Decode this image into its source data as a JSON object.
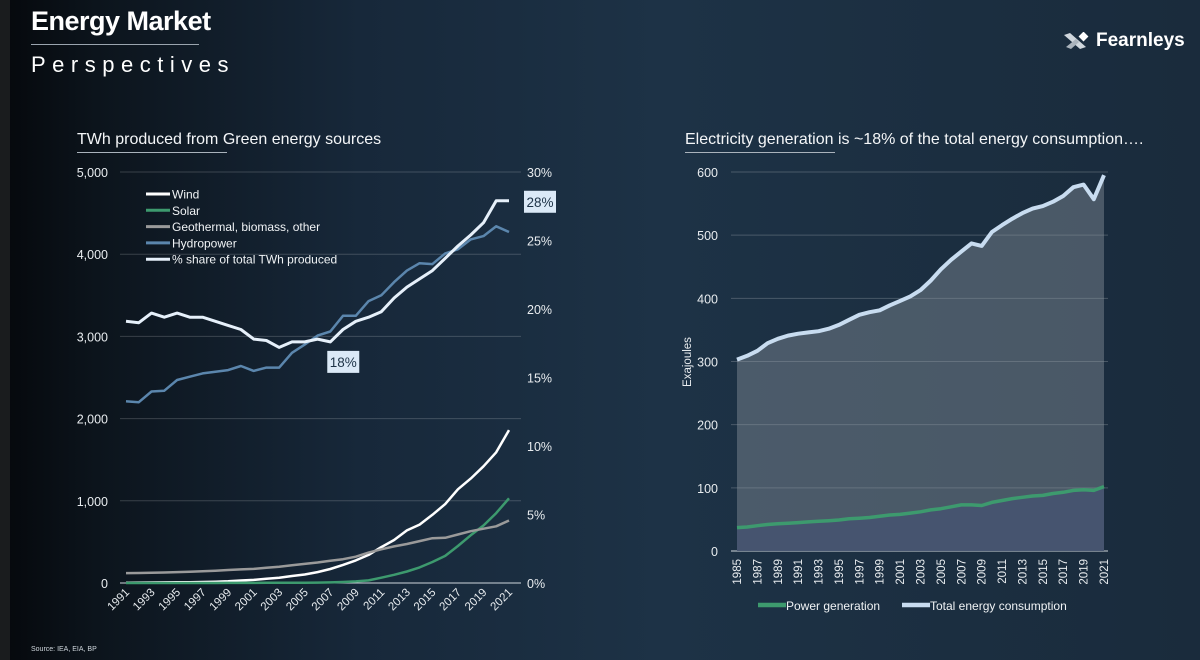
{
  "header": {
    "title": "Energy Market",
    "subtitle": "Perspectives",
    "logo_text": "Fearnleys"
  },
  "source": "Source: IEA, EIA, BP",
  "colors": {
    "wind": "#ffffff",
    "solar": "#3d9a6e",
    "geo": "#9a9a9a",
    "hydro": "#5b86ad",
    "share": "#e6f0fa",
    "total": "#c8dcf0",
    "power": "#3d9a6e"
  },
  "chart_data": [
    {
      "type": "line",
      "title": "TWh produced from Green energy sources",
      "x": [
        1991,
        1992,
        1993,
        1994,
        1995,
        1996,
        1997,
        1998,
        1999,
        2000,
        2001,
        2002,
        2003,
        2004,
        2005,
        2006,
        2007,
        2008,
        2009,
        2010,
        2011,
        2012,
        2013,
        2014,
        2015,
        2016,
        2017,
        2018,
        2019,
        2020,
        2021
      ],
      "x_tick_labels": [
        "1991",
        "1993",
        "1995",
        "1997",
        "1999",
        "2001",
        "2003",
        "2005",
        "2007",
        "2009",
        "2011",
        "2013",
        "2015",
        "2017",
        "2019",
        "2021"
      ],
      "ylim": [
        0,
        5000
      ],
      "y_tick_labels": [
        "0",
        "1,000",
        "2,000",
        "3,000",
        "4,000",
        "5,000"
      ],
      "y2lim": [
        0,
        30
      ],
      "y2_tick_labels": [
        "0%",
        "5%",
        "10%",
        "15%",
        "20%",
        "25%",
        "30%"
      ],
      "grid": true,
      "legend_position": "top-left",
      "series": [
        {
          "name": "Wind",
          "key": "wind",
          "axis": "left",
          "values": [
            4,
            5,
            6,
            7,
            8,
            10,
            12,
            16,
            21,
            31,
            38,
            52,
            63,
            85,
            104,
            133,
            170,
            220,
            275,
            342,
            437,
            523,
            640,
            710,
            830,
            960,
            1140,
            1270,
            1420,
            1590,
            1860
          ]
        },
        {
          "name": "Solar",
          "key": "solar",
          "axis": "left",
          "values": [
            0,
            0,
            0,
            0,
            0,
            0,
            0,
            0,
            1,
            1,
            1,
            2,
            2,
            3,
            4,
            5,
            7,
            12,
            20,
            32,
            65,
            100,
            140,
            190,
            255,
            330,
            450,
            580,
            700,
            850,
            1030
          ]
        },
        {
          "name": "Geothermal, biomass, other",
          "key": "geo",
          "axis": "left",
          "values": [
            120,
            122,
            125,
            128,
            132,
            137,
            143,
            150,
            158,
            166,
            172,
            185,
            198,
            215,
            232,
            250,
            270,
            290,
            320,
            370,
            410,
            445,
            475,
            510,
            545,
            550,
            590,
            630,
            660,
            690,
            760
          ]
        },
        {
          "name": "Hydropower",
          "key": "hydro",
          "axis": "left",
          "values": [
            2210,
            2200,
            2330,
            2340,
            2470,
            2510,
            2550,
            2570,
            2590,
            2640,
            2580,
            2620,
            2620,
            2800,
            2900,
            3010,
            3060,
            3250,
            3250,
            3430,
            3500,
            3660,
            3800,
            3890,
            3880,
            4010,
            4060,
            4180,
            4220,
            4340,
            4270
          ]
        },
        {
          "name": "% share of total TWh produced",
          "key": "share",
          "axis": "right",
          "values": [
            19.1,
            19.0,
            19.7,
            19.4,
            19.7,
            19.4,
            19.4,
            19.1,
            18.8,
            18.5,
            17.8,
            17.7,
            17.2,
            17.6,
            17.6,
            17.8,
            17.6,
            18.5,
            19.1,
            19.4,
            19.8,
            20.8,
            21.6,
            22.2,
            22.8,
            23.7,
            24.6,
            25.4,
            26.3,
            27.9,
            27.9
          ]
        }
      ],
      "annotations": [
        {
          "label": "18%",
          "x": 2007,
          "value": 17.6
        },
        {
          "label": "28%",
          "x": 2021,
          "value": 27.9
        }
      ]
    },
    {
      "type": "area",
      "title": "Electricity generation is ~18% of the total energy consumption….",
      "ylabel": "Exajoules",
      "x": [
        1985,
        1986,
        1987,
        1988,
        1989,
        1990,
        1991,
        1992,
        1993,
        1994,
        1995,
        1996,
        1997,
        1998,
        1999,
        2000,
        2001,
        2002,
        2003,
        2004,
        2005,
        2006,
        2007,
        2008,
        2009,
        2010,
        2011,
        2012,
        2013,
        2014,
        2015,
        2016,
        2017,
        2018,
        2019,
        2020,
        2021
      ],
      "x_tick_labels": [
        "1985",
        "1987",
        "1989",
        "1991",
        "1993",
        "1995",
        "1997",
        "1999",
        "2001",
        "2003",
        "2005",
        "2007",
        "2009",
        "2011",
        "2013",
        "2015",
        "2017",
        "2019",
        "2021"
      ],
      "ylim": [
        0,
        600
      ],
      "y_tick_labels": [
        "0",
        "100",
        "200",
        "300",
        "400",
        "500",
        "600"
      ],
      "grid": true,
      "legend_position": "bottom",
      "series": [
        {
          "name": "Power generation",
          "key": "power",
          "values": [
            37,
            38,
            40,
            42,
            43,
            44,
            45,
            46,
            47,
            48,
            49,
            51,
            52,
            53,
            55,
            57,
            58,
            60,
            62,
            65,
            67,
            70,
            73,
            73,
            72,
            77,
            80,
            83,
            85,
            87,
            88,
            91,
            93,
            96,
            97,
            96,
            102
          ]
        },
        {
          "name": "Total energy consumption",
          "key": "total",
          "values": [
            303,
            309,
            317,
            329,
            336,
            341,
            344,
            346,
            348,
            352,
            358,
            366,
            374,
            378,
            381,
            389,
            396,
            403,
            413,
            428,
            446,
            461,
            474,
            487,
            483,
            505,
            516,
            526,
            535,
            542,
            546,
            553,
            562,
            576,
            580,
            557,
            595
          ]
        }
      ]
    }
  ]
}
